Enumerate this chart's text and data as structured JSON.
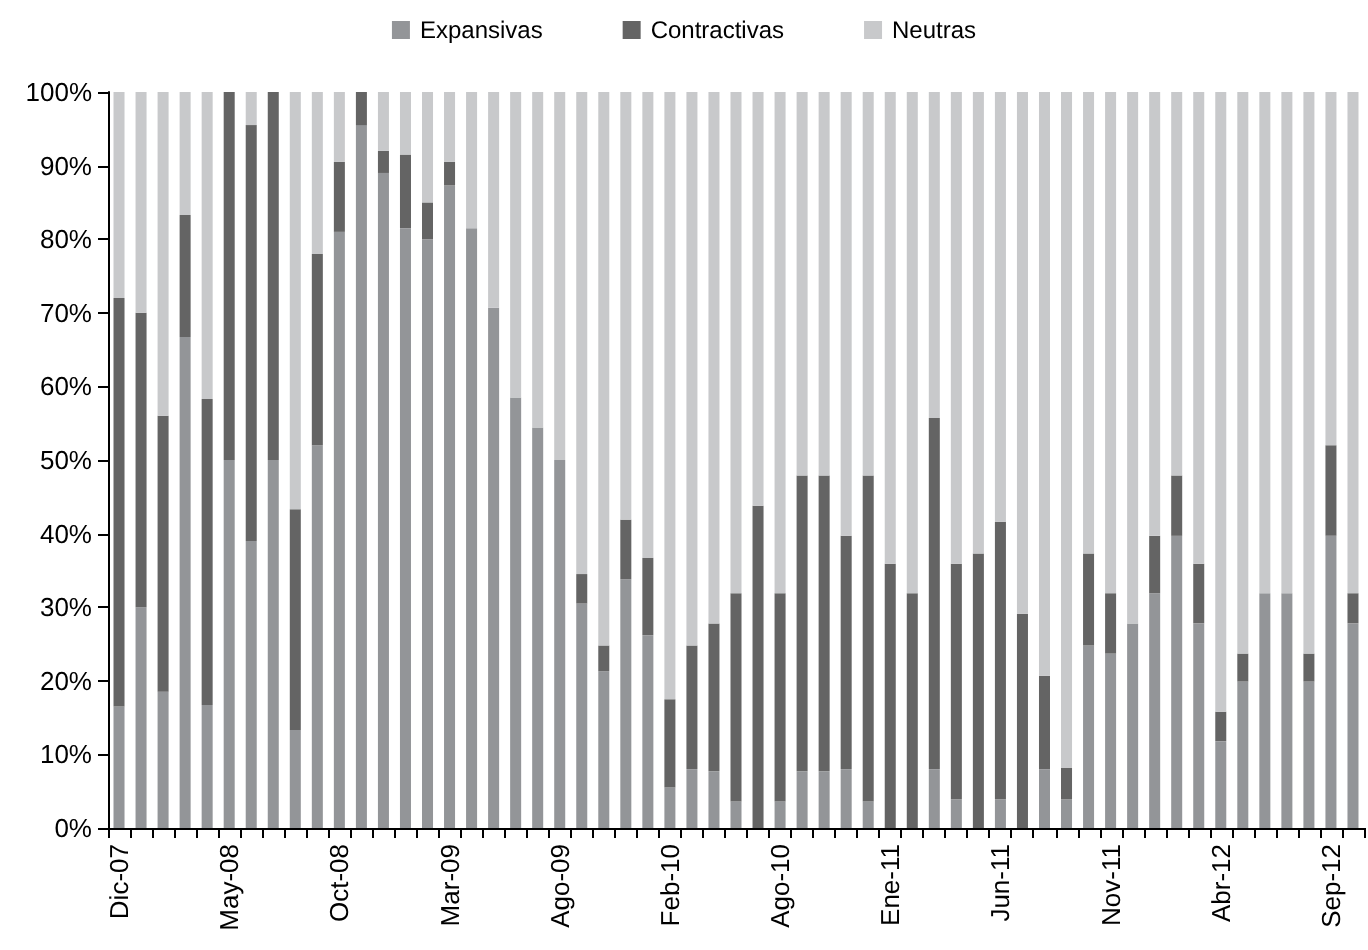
{
  "chart_data": {
    "type": "bar",
    "stacked": true,
    "legend": "top",
    "grid": false,
    "categories": [
      "Dic-07",
      null,
      null,
      null,
      null,
      "May-08",
      null,
      null,
      null,
      null,
      "Oct-08",
      null,
      null,
      null,
      null,
      "Mar-09",
      null,
      null,
      null,
      null,
      "Ago-09",
      null,
      null,
      null,
      null,
      "Feb-10",
      null,
      null,
      null,
      null,
      "Ago-10",
      null,
      null,
      null,
      null,
      "Ene-11",
      null,
      null,
      null,
      null,
      "Jun-11",
      null,
      null,
      null,
      null,
      "Nov-11",
      null,
      null,
      null,
      null,
      "Abr-12",
      null,
      null,
      null,
      null,
      "Sep-12",
      null
    ],
    "series": [
      {
        "name": "Expansivas",
        "color": "#939598",
        "values": [
          16.5,
          30,
          18.5,
          66.7,
          16.7,
          50,
          39,
          50,
          13.3,
          52,
          81,
          95.5,
          89,
          81.5,
          80,
          87.3,
          81.5,
          70.7,
          58.5,
          54.4,
          50,
          30.5,
          21.3,
          33.8,
          26.2,
          5.5,
          8,
          7.7,
          3.6,
          0,
          3.6,
          7.7,
          7.7,
          8,
          3.6,
          0,
          0,
          8,
          3.9,
          0,
          3.9,
          0,
          8,
          3.9,
          24.8,
          23.7,
          27.8,
          31.9,
          39.7,
          27.8,
          11.8,
          19.9,
          31.9,
          31.9,
          19.9,
          39.7,
          27.8
        ]
      },
      {
        "name": "Contractivas",
        "color": "#646464",
        "values": [
          55.5,
          40,
          37.5,
          16.6,
          41.6,
          50,
          56.5,
          50,
          30,
          26,
          9.5,
          4.5,
          3,
          10,
          5,
          3.2,
          0,
          0,
          0,
          0,
          0,
          4,
          3.5,
          8.1,
          10.5,
          12,
          16.8,
          20.1,
          28.3,
          43.8,
          28.3,
          40.2,
          40.2,
          31.7,
          44.3,
          35.9,
          31.9,
          47.7,
          32,
          37.3,
          37.7,
          29.1,
          12.7,
          4.3,
          12.5,
          8.2,
          0,
          7.8,
          8.2,
          8.1,
          4,
          3.8,
          0,
          0,
          3.8,
          12.3,
          4.1
        ]
      },
      {
        "name": "Neutras",
        "color": "#c8c9cb",
        "values": [
          28,
          30,
          44,
          16.7,
          41.7,
          0,
          4.5,
          0,
          56.7,
          22,
          9.5,
          0,
          8,
          8.5,
          15,
          9.5,
          18.5,
          29.3,
          41.5,
          45.6,
          50,
          65.5,
          75.2,
          58.1,
          63.3,
          82.5,
          75.2,
          72.2,
          68.1,
          56.2,
          68.1,
          52.1,
          52.1,
          60.3,
          52.1,
          64.1,
          68.1,
          44.3,
          64.1,
          62.7,
          58.4,
          70.9,
          79.3,
          91.8,
          62.7,
          68.1,
          72.2,
          60.3,
          52.1,
          64.1,
          84.2,
          76.3,
          68.1,
          68.1,
          76.3,
          48,
          68.1
        ]
      }
    ],
    "ylim": [
      0,
      100
    ],
    "yticks": [
      {
        "value": 0,
        "label": "0%"
      },
      {
        "value": 10,
        "label": "10%"
      },
      {
        "value": 20,
        "label": "20%"
      },
      {
        "value": 30,
        "label": "30%"
      },
      {
        "value": 40,
        "label": "40%"
      },
      {
        "value": 50,
        "label": "50%"
      },
      {
        "value": 60,
        "label": "60%"
      },
      {
        "value": 70,
        "label": "70%"
      },
      {
        "value": 80,
        "label": "80%"
      },
      {
        "value": 90,
        "label": "90%"
      },
      {
        "value": 100,
        "label": "100%"
      }
    ]
  }
}
